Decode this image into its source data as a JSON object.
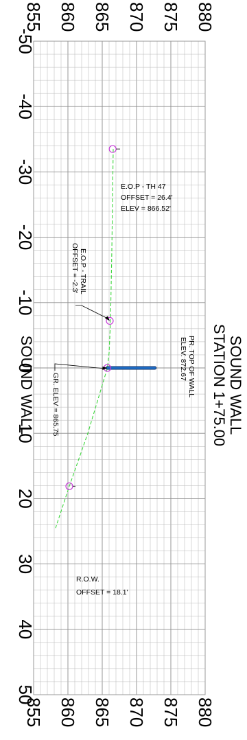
{
  "chart_data": {
    "type": "line",
    "title_lines": [
      "SOUND WALL",
      "STATION 1+75.00"
    ],
    "x_label": "SOUND WALL",
    "x_range": [
      -50,
      50
    ],
    "x_ticks": [
      "-50",
      "-40",
      "-30",
      "-20",
      "-10",
      "0",
      "10",
      "20",
      "30",
      "40",
      "50"
    ],
    "y_range": [
      855,
      880
    ],
    "y_ticks": [
      "855",
      "860",
      "865",
      "870",
      "875",
      "880"
    ],
    "grid": true,
    "ground_profile": [
      {
        "x": -33.5,
        "y": 866.6
      },
      {
        "x": -18,
        "y": 866.4
      },
      {
        "x": -7,
        "y": 866.2
      },
      {
        "x": -2.3,
        "y": 866.0
      },
      {
        "x": 0,
        "y": 865.75
      },
      {
        "x": 10,
        "y": 862.9
      },
      {
        "x": 18.1,
        "y": 860.2
      },
      {
        "x": 24.5,
        "y": 858.2
      }
    ],
    "wall": {
      "x": 0,
      "y_bottom": 865.75,
      "y_top": 872.67
    },
    "points": [
      {
        "x": -33.5,
        "y": 866.52,
        "lines": [
          "E.O.P - TH 47",
          "OFFSET = 26.4'",
          "ELEV = 866.52'"
        ]
      },
      {
        "x": -7.2,
        "y": 866.1,
        "lines": [
          "E.O.P - TRAIL",
          "OFFSET = -2.3'"
        ]
      },
      {
        "x": 0,
        "y": 865.75,
        "lines": [
          "GR. ELEV = 865.75"
        ]
      },
      {
        "x": 18.1,
        "y": 860.2,
        "lines": [
          "R.O.W.",
          "OFFSET = 18.1'"
        ]
      }
    ],
    "wall_label_lines": [
      "PR. TOP OF WALL",
      "ELEV. 872.67"
    ],
    "colors": {
      "ground": "#3cd63c",
      "wall": "#1f6fc9",
      "wall_outline": "#0d2f66",
      "point": "#c43ad6",
      "grid": "#b5b5b5",
      "grid_major": "#8c8c8c"
    }
  }
}
